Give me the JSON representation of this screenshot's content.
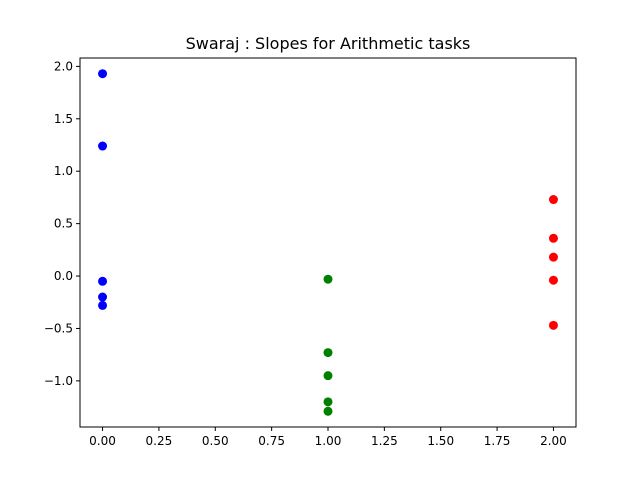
{
  "chart_data": {
    "type": "scatter",
    "title": "Swaraj : Slopes for Arithmetic tasks",
    "xlabel": "",
    "ylabel": "",
    "xlim": [
      -0.1,
      2.1
    ],
    "ylim": [
      -1.44,
      2.08
    ],
    "x_ticks": [
      0.0,
      0.25,
      0.5,
      0.75,
      1.0,
      1.25,
      1.5,
      1.75,
      2.0
    ],
    "x_tick_labels": [
      "0.00",
      "0.25",
      "0.50",
      "0.75",
      "1.00",
      "1.25",
      "1.50",
      "1.75",
      "2.00"
    ],
    "y_ticks": [
      2.0,
      1.5,
      1.0,
      0.5,
      0.0,
      -0.5,
      -1.0
    ],
    "y_tick_labels": [
      "2.0",
      "1.5",
      "1.0",
      "0.5",
      "0.0",
      "−0.5",
      "−1.0"
    ],
    "grid": false,
    "series": [
      {
        "color": "#0000ff",
        "x": [
          0,
          0,
          0,
          0,
          0
        ],
        "y": [
          1.93,
          1.24,
          -0.05,
          -0.2,
          -0.28
        ]
      },
      {
        "color": "#008000",
        "x": [
          1,
          1,
          1,
          1,
          1
        ],
        "y": [
          -0.03,
          -0.73,
          -0.95,
          -1.2,
          -1.29
        ]
      },
      {
        "color": "#ff0000",
        "x": [
          2,
          2,
          2,
          2,
          2
        ],
        "y": [
          0.73,
          0.36,
          0.18,
          -0.04,
          -0.47
        ]
      }
    ]
  }
}
